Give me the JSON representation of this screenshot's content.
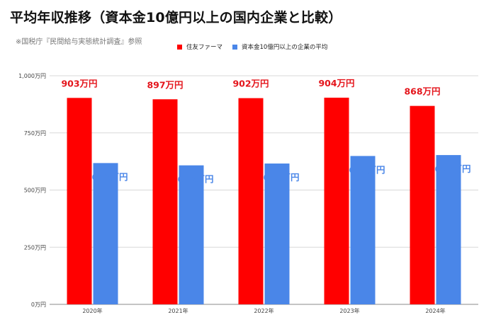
{
  "chart_data": {
    "type": "bar",
    "title": "平均年収推移（資本金10億円以上の国内企業と比較）",
    "subtitle": "※国税庁『民間給与実態統計調査』参照",
    "categories": [
      "2020年",
      "2021年",
      "2022年",
      "2023年",
      "2024年"
    ],
    "series": [
      {
        "name": "住友ファーマ",
        "color": "#ff0000",
        "label_color": "#e4141b",
        "values": [
          903,
          897,
          902,
          904,
          868
        ],
        "labels": [
          "903万円",
          "897万円",
          "902万円",
          "904万円",
          "868万円"
        ]
      },
      {
        "name": "資本金10億円以上の企業の平均",
        "color": "#4a86e8",
        "label_color": "#4a86e8",
        "values": [
          618,
          608,
          616,
          649,
          653
        ],
        "labels": [
          "618万円",
          "608万円",
          "616万円",
          "649万円",
          "653万円"
        ]
      }
    ],
    "ylim": [
      0,
      1000
    ],
    "yticks": [
      0,
      250,
      500,
      750,
      1000
    ],
    "ytick_labels": [
      "0万円",
      "250万円",
      "500万円",
      "750万円",
      "1,000万円"
    ],
    "grid": true,
    "legend_position": "top"
  }
}
